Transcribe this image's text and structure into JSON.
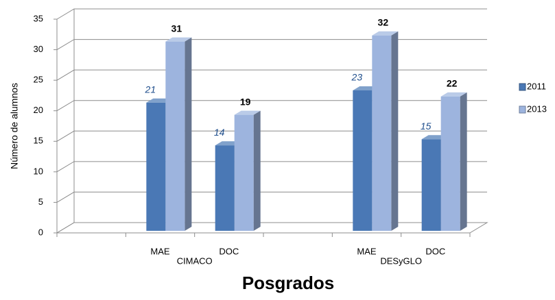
{
  "chart_data": {
    "type": "bar3d",
    "categories": [
      null,
      "MAE",
      "DOC",
      null,
      "MAE",
      "DOC"
    ],
    "groups": [
      "CIMACO",
      "DESyGLO"
    ],
    "series": [
      {
        "name": "2011",
        "color": "#4a78b5",
        "values": [
          null,
          21,
          14,
          null,
          23,
          15
        ]
      },
      {
        "name": "2013",
        "color": "#9db4de",
        "values": [
          null,
          31,
          19,
          null,
          32,
          22
        ]
      }
    ],
    "ylim": [
      0,
      35
    ],
    "yticks": [
      0,
      5,
      10,
      15,
      20,
      25,
      30,
      35
    ],
    "y_label": "Número de alumnos",
    "x_label": "Posgrados",
    "grid": true,
    "legend": "right"
  }
}
